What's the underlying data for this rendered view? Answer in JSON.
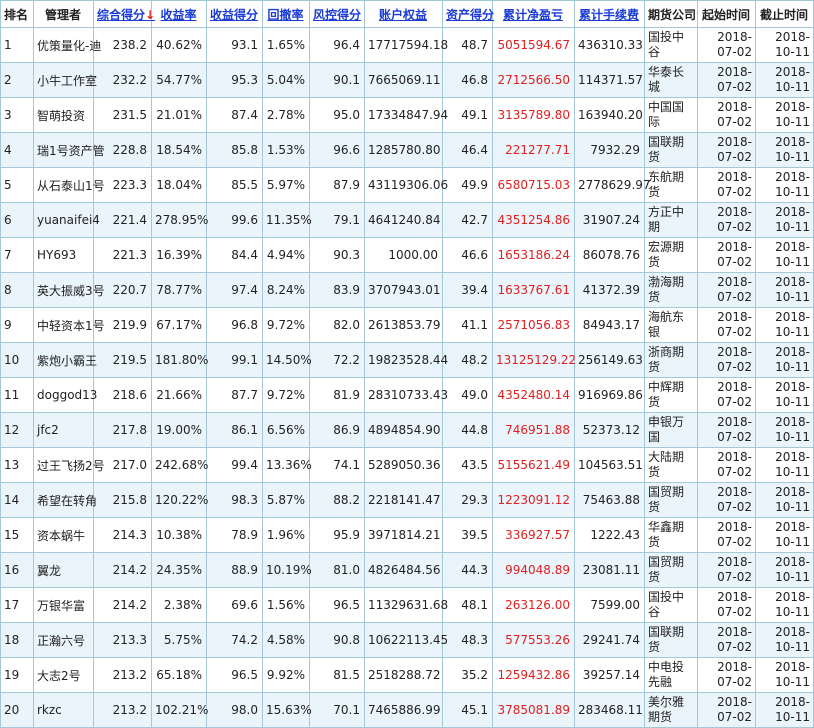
{
  "columns": [
    {
      "label": "排名",
      "sortable": false
    },
    {
      "label": "管理者",
      "sortable": false
    },
    {
      "label": "综合得分",
      "sortable": true,
      "sorted": true,
      "arrow": "↓"
    },
    {
      "label": "收益率",
      "sortable": true
    },
    {
      "label": "收益得分",
      "sortable": true
    },
    {
      "label": "回撤率",
      "sortable": true
    },
    {
      "label": "风控得分",
      "sortable": true
    },
    {
      "label": "账户权益",
      "sortable": true
    },
    {
      "label": "资产得分",
      "sortable": true
    },
    {
      "label": "累计净盈亏",
      "sortable": true
    },
    {
      "label": "累计手续费",
      "sortable": true
    },
    {
      "label": "期货公司",
      "sortable": false
    },
    {
      "label": "起始时间",
      "sortable": false
    },
    {
      "label": "截止时间",
      "sortable": false
    }
  ],
  "colors": {
    "link": "#1a3bd6",
    "profit": "#e02020",
    "row_alt": "#eaf4fb",
    "border": "#a5c8d8"
  },
  "rows": [
    {
      "rank": "1",
      "manager": "优策量化-迪",
      "score": "238.2",
      "return_rate": "40.62%",
      "return_score": "93.1",
      "drawdown": "1.65%",
      "risk_score": "96.4",
      "equity": "17717594.18",
      "asset_score": "48.7",
      "net_pnl": "5051594.67",
      "fees": "436310.33",
      "broker": "国投中谷",
      "start": "2018-07-02",
      "end": "2018-10-11"
    },
    {
      "rank": "2",
      "manager": "小牛工作室",
      "score": "232.2",
      "return_rate": "54.77%",
      "return_score": "95.3",
      "drawdown": "5.04%",
      "risk_score": "90.1",
      "equity": "7665069.11",
      "asset_score": "46.8",
      "net_pnl": "2712566.50",
      "fees": "114371.57",
      "broker": "华泰长城",
      "start": "2018-07-02",
      "end": "2018-10-11"
    },
    {
      "rank": "3",
      "manager": "智萌投资",
      "score": "231.5",
      "return_rate": "21.01%",
      "return_score": "87.4",
      "drawdown": "2.78%",
      "risk_score": "95.0",
      "equity": "17334847.94",
      "asset_score": "49.1",
      "net_pnl": "3135789.80",
      "fees": "163940.20",
      "broker": "中国国际",
      "start": "2018-07-02",
      "end": "2018-10-11"
    },
    {
      "rank": "4",
      "manager": "瑞1号资产管",
      "score": "228.8",
      "return_rate": "18.54%",
      "return_score": "85.8",
      "drawdown": "1.53%",
      "risk_score": "96.6",
      "equity": "1285780.80",
      "asset_score": "46.4",
      "net_pnl": "221277.71",
      "fees": "7932.29",
      "broker": "国联期货",
      "start": "2018-07-02",
      "end": "2018-10-11"
    },
    {
      "rank": "5",
      "manager": "从石泰山1号",
      "score": "223.3",
      "return_rate": "18.04%",
      "return_score": "85.5",
      "drawdown": "5.97%",
      "risk_score": "87.9",
      "equity": "43119306.06",
      "asset_score": "49.9",
      "net_pnl": "6580715.03",
      "fees": "2778629.97",
      "broker": "东航期货",
      "start": "2018-07-02",
      "end": "2018-10-11"
    },
    {
      "rank": "6",
      "manager": "yuanaifei4",
      "score": "221.4",
      "return_rate": "278.95%",
      "return_score": "99.6",
      "drawdown": "11.35%",
      "risk_score": "79.1",
      "equity": "4641240.84",
      "asset_score": "42.7",
      "net_pnl": "4351254.86",
      "fees": "31907.24",
      "broker": "方正中期",
      "start": "2018-07-02",
      "end": "2018-10-11"
    },
    {
      "rank": "7",
      "manager": "HY693",
      "score": "221.3",
      "return_rate": "16.39%",
      "return_score": "84.4",
      "drawdown": "4.94%",
      "risk_score": "90.3",
      "equity": "1000.00",
      "asset_score": "46.6",
      "net_pnl": "1653186.24",
      "fees": "86078.76",
      "broker": "宏源期货",
      "start": "2018-07-02",
      "end": "2018-10-11"
    },
    {
      "rank": "8",
      "manager": "英大振威3号",
      "score": "220.7",
      "return_rate": "78.77%",
      "return_score": "97.4",
      "drawdown": "8.24%",
      "risk_score": "83.9",
      "equity": "3707943.01",
      "asset_score": "39.4",
      "net_pnl": "1633767.61",
      "fees": "41372.39",
      "broker": "渤海期货",
      "start": "2018-07-02",
      "end": "2018-10-11"
    },
    {
      "rank": "9",
      "manager": "中轻资本1号",
      "score": "219.9",
      "return_rate": "67.17%",
      "return_score": "96.8",
      "drawdown": "9.72%",
      "risk_score": "82.0",
      "equity": "2613853.79",
      "asset_score": "41.1",
      "net_pnl": "2571056.83",
      "fees": "84943.17",
      "broker": "海航东银",
      "start": "2018-07-02",
      "end": "2018-10-11"
    },
    {
      "rank": "10",
      "manager": "紫炮小霸王",
      "score": "219.5",
      "return_rate": "181.80%",
      "return_score": "99.1",
      "drawdown": "14.50%",
      "risk_score": "72.2",
      "equity": "19823528.44",
      "asset_score": "48.2",
      "net_pnl": "13125129.22",
      "fees": "256149.63",
      "broker": "浙商期货",
      "start": "2018-07-02",
      "end": "2018-10-11"
    },
    {
      "rank": "11",
      "manager": "doggod13",
      "score": "218.6",
      "return_rate": "21.66%",
      "return_score": "87.7",
      "drawdown": "9.72%",
      "risk_score": "81.9",
      "equity": "28310733.43",
      "asset_score": "49.0",
      "net_pnl": "4352480.14",
      "fees": "916969.86",
      "broker": "中辉期货",
      "start": "2018-07-02",
      "end": "2018-10-11"
    },
    {
      "rank": "12",
      "manager": "jfc2",
      "score": "217.8",
      "return_rate": "19.00%",
      "return_score": "86.1",
      "drawdown": "6.56%",
      "risk_score": "86.9",
      "equity": "4894854.90",
      "asset_score": "44.8",
      "net_pnl": "746951.88",
      "fees": "52373.12",
      "broker": "申银万国",
      "start": "2018-07-02",
      "end": "2018-10-11"
    },
    {
      "rank": "13",
      "manager": "过王飞扬2号",
      "score": "217.0",
      "return_rate": "242.68%",
      "return_score": "99.4",
      "drawdown": "13.36%",
      "risk_score": "74.1",
      "equity": "5289050.36",
      "asset_score": "43.5",
      "net_pnl": "5155621.49",
      "fees": "104563.51",
      "broker": "大陆期货",
      "start": "2018-07-02",
      "end": "2018-10-11"
    },
    {
      "rank": "14",
      "manager": "希望在转角",
      "score": "215.8",
      "return_rate": "120.22%",
      "return_score": "98.3",
      "drawdown": "5.87%",
      "risk_score": "88.2",
      "equity": "2218141.47",
      "asset_score": "29.3",
      "net_pnl": "1223091.12",
      "fees": "75463.88",
      "broker": "国贸期货",
      "start": "2018-07-02",
      "end": "2018-10-11"
    },
    {
      "rank": "15",
      "manager": "资本蜗牛",
      "score": "214.3",
      "return_rate": "10.38%",
      "return_score": "78.9",
      "drawdown": "1.96%",
      "risk_score": "95.9",
      "equity": "3971814.21",
      "asset_score": "39.5",
      "net_pnl": "336927.57",
      "fees": "1222.43",
      "broker": "华鑫期货",
      "start": "2018-07-02",
      "end": "2018-10-11"
    },
    {
      "rank": "16",
      "manager": "翼龙",
      "score": "214.2",
      "return_rate": "24.35%",
      "return_score": "88.9",
      "drawdown": "10.19%",
      "risk_score": "81.0",
      "equity": "4826484.56",
      "asset_score": "44.3",
      "net_pnl": "994048.89",
      "fees": "23081.11",
      "broker": "国贸期货",
      "start": "2018-07-02",
      "end": "2018-10-11"
    },
    {
      "rank": "17",
      "manager": "万银华富",
      "score": "214.2",
      "return_rate": "2.38%",
      "return_score": "69.6",
      "drawdown": "1.56%",
      "risk_score": "96.5",
      "equity": "11329631.68",
      "asset_score": "48.1",
      "net_pnl": "263126.00",
      "fees": "7599.00",
      "broker": "国投中谷",
      "start": "2018-07-02",
      "end": "2018-10-11"
    },
    {
      "rank": "18",
      "manager": "正瀚六号",
      "score": "213.3",
      "return_rate": "5.75%",
      "return_score": "74.2",
      "drawdown": "4.58%",
      "risk_score": "90.8",
      "equity": "10622113.45",
      "asset_score": "48.3",
      "net_pnl": "577553.26",
      "fees": "29241.74",
      "broker": "国联期货",
      "start": "2018-07-02",
      "end": "2018-10-11"
    },
    {
      "rank": "19",
      "manager": "大志2号",
      "score": "213.2",
      "return_rate": "65.18%",
      "return_score": "96.5",
      "drawdown": "9.92%",
      "risk_score": "81.5",
      "equity": "2518288.72",
      "asset_score": "35.2",
      "net_pnl": "1259432.86",
      "fees": "39257.14",
      "broker": "中电投先融",
      "start": "2018-07-02",
      "end": "2018-10-11"
    },
    {
      "rank": "20",
      "manager": "rkzc",
      "score": "213.2",
      "return_rate": "102.21%",
      "return_score": "98.0",
      "drawdown": "15.63%",
      "risk_score": "70.1",
      "equity": "7465886.99",
      "asset_score": "45.1",
      "net_pnl": "3785081.89",
      "fees": "283468.11",
      "broker": "美尔雅期货",
      "start": "2018-07-02",
      "end": "2018-10-11"
    }
  ]
}
